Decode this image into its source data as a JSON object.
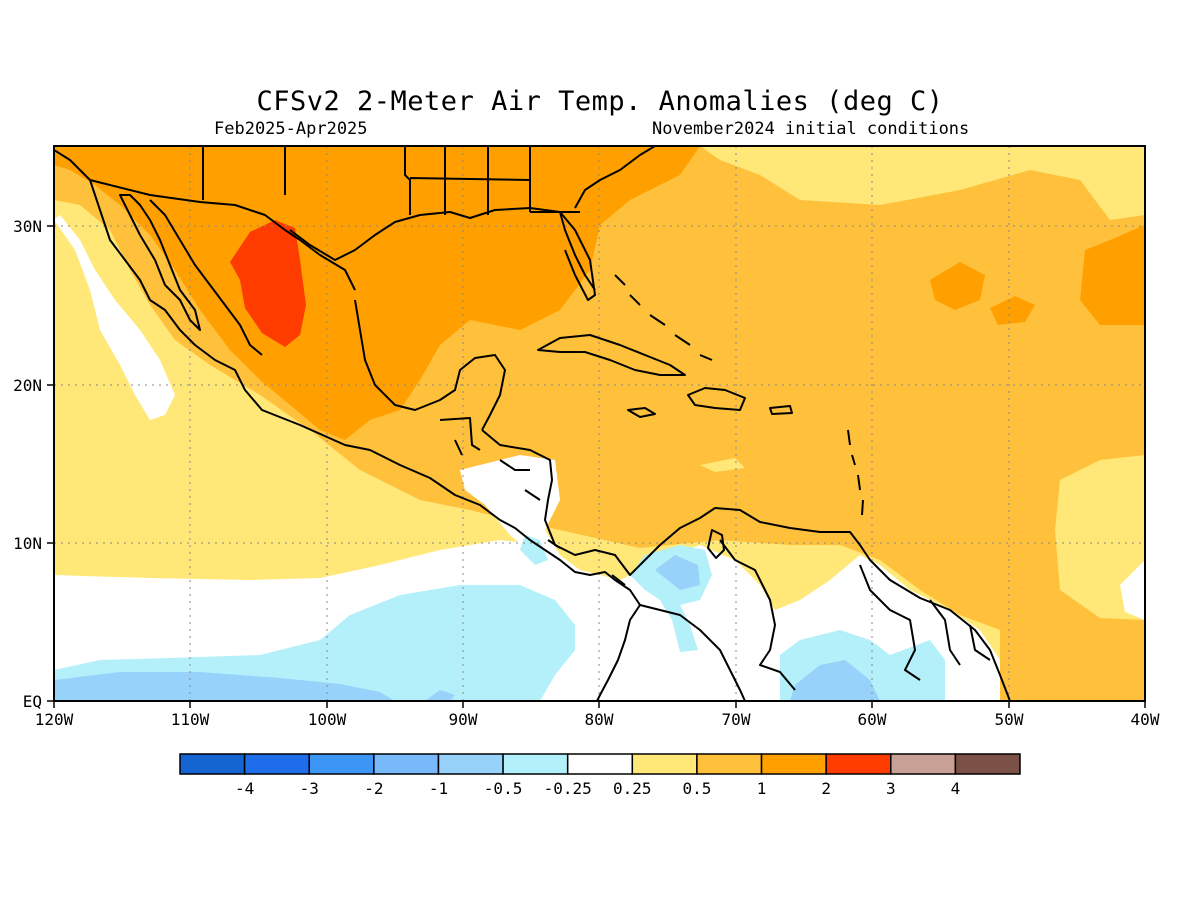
{
  "title": "CFSv2 2-Meter Air Temp. Anomalies (deg C)",
  "period": "Feb2025-Apr2025",
  "initial_conditions": "November2024 initial conditions",
  "map": {
    "lon_ticks": [
      "120W",
      "110W",
      "100W",
      "90W",
      "80W",
      "70W",
      "60W",
      "50W",
      "40W"
    ],
    "lat_ticks": [
      "EQ",
      "10N",
      "20N",
      "30N"
    ]
  },
  "legend": {
    "colors": [
      "#1464d2",
      "#1e6eeb",
      "#3c96f5",
      "#78b9fa",
      "#96d2fa",
      "#b4f0fa",
      "#ffffff",
      "#ffe878",
      "#ffc03c",
      "#ffa000",
      "#ff3c00",
      "#c8a096",
      "#7b5046"
    ],
    "labels": [
      "-4",
      "-3",
      "-2",
      "-1",
      "-0.5",
      "-0.25",
      "0.25",
      "0.5",
      "1",
      "2",
      "3",
      "4"
    ]
  }
}
